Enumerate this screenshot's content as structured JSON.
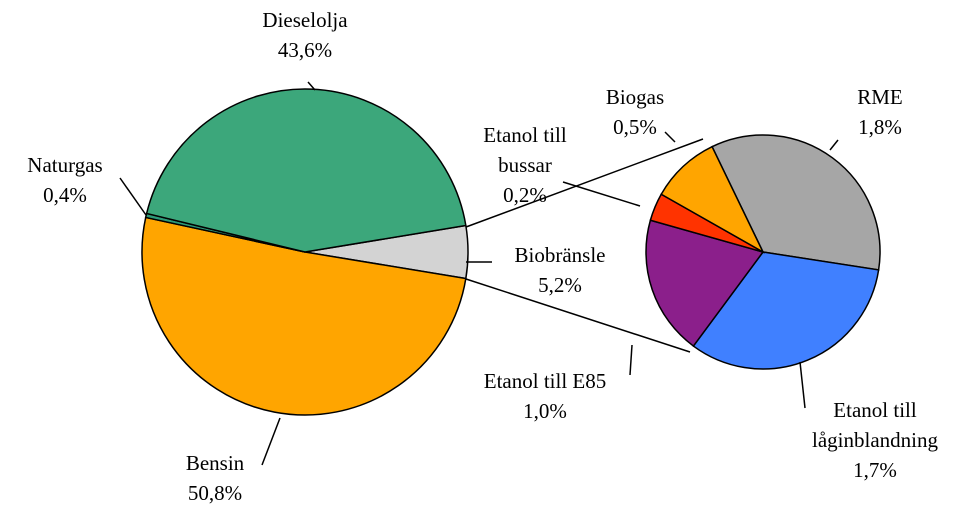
{
  "chart_data": [
    {
      "type": "pie",
      "categories": [
        "Biobränsle",
        "Bensin",
        "Naturgas",
        "Dieselolja"
      ],
      "values": [
        5.2,
        50.8,
        0.4,
        43.6
      ],
      "value_labels": [
        "5,2%",
        "50,8%",
        "0,4%",
        "43,6%"
      ],
      "colors": [
        "#d3d3d3",
        "#ffa500",
        "#2e9a78",
        "#3ca77b"
      ]
    },
    {
      "type": "pie",
      "categories": [
        "RME",
        "Etanol till låginblandning",
        "Etanol till E85",
        "Etanol till bussar",
        "Biogas"
      ],
      "values": [
        1.8,
        1.7,
        1.0,
        0.2,
        0.5
      ],
      "value_labels": [
        "1,8%",
        "1,7%",
        "1,0%",
        "0,2%",
        "0,5%"
      ],
      "colors": [
        "#a6a6a6",
        "#4080ff",
        "#8b1f8b",
        "#ff3300",
        "#ffa500"
      ]
    }
  ]
}
